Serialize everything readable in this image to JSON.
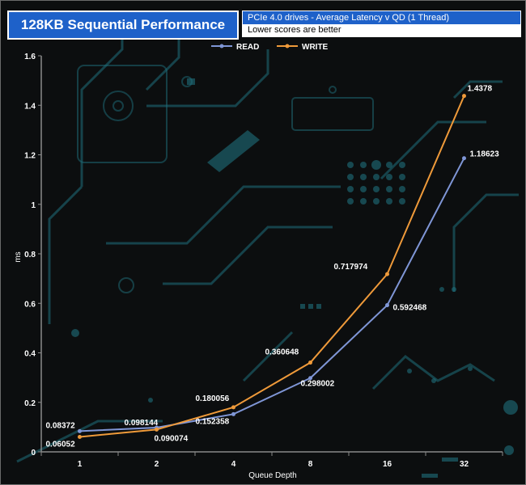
{
  "header": {
    "title": "128KB Sequential Performance",
    "subtitle": "PCIe 4.0 drives - Average Latency v QD (1 Thread)",
    "note": "Lower scores are better"
  },
  "colors": {
    "read": "#7f96d6",
    "write": "#ef9a3a",
    "title_bg": "#1e61c9",
    "circuit": "#1f6f7c"
  },
  "chart_data": {
    "type": "line",
    "categories": [
      "1",
      "2",
      "4",
      "8",
      "16",
      "32"
    ],
    "xlabel": "Queue Depth",
    "ylabel": "ms",
    "ylim": [
      0,
      1.6
    ],
    "yticks": [
      "0",
      "0.2",
      "0.4",
      "0.6",
      "0.8",
      "1",
      "1.2",
      "1.4",
      "1.6"
    ],
    "legend": "top-center",
    "grid": false,
    "series": [
      {
        "name": "READ",
        "values": [
          0.08372,
          0.098144,
          0.152358,
          0.298002,
          0.592468,
          1.18623
        ],
        "labels": [
          "0.08372",
          "0.098144",
          "0.152358",
          "0.298002",
          "0.592468",
          "1.18623"
        ]
      },
      {
        "name": "WRITE",
        "values": [
          0.06052,
          0.090074,
          0.180056,
          0.360648,
          0.717974,
          1.4378
        ],
        "labels": [
          "0.06052",
          "0.090074",
          "0.180056",
          "0.360648",
          "0.717974",
          "1.4378"
        ]
      }
    ]
  }
}
